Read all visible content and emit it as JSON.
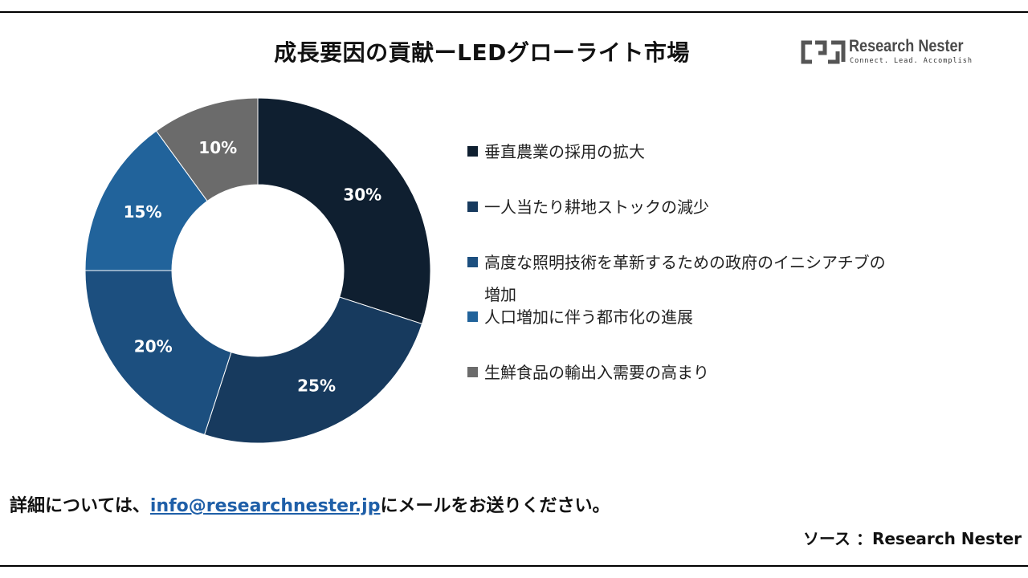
{
  "title": "成長要因の貢献ーLEDグローライト市場",
  "logo": {
    "name": "Research Nester",
    "tagline": "Connect. Lead. Accomplish",
    "icon": "research-nester-logo"
  },
  "chart_data": {
    "type": "pie",
    "donut": true,
    "start_angle_deg": 0,
    "direction": "clockwise",
    "categories": [
      "垂直農業の採用の拡大",
      "一人当たり耕地ストックの減少",
      "高度な照明技術を革新するための政府のイニシアチブの増加",
      "人口増加に伴う都市化の進展",
      "生鮮食品の輸出入需要の高まり"
    ],
    "values": [
      30,
      25,
      20,
      15,
      10
    ],
    "labels": [
      "30%",
      "25%",
      "20%",
      "15%",
      "10%"
    ],
    "colors": [
      "#0f1f30",
      "#173a5e",
      "#1c4f7f",
      "#21639b",
      "#6b6b6b"
    ],
    "legend_placement": "right"
  },
  "legend": [
    {
      "line1": "垂直農業の採用の拡大",
      "line2": ""
    },
    {
      "line1": "一人当たり耕地ストックの減少",
      "line2": ""
    },
    {
      "line1": "高度な照明技術を革新するための政府のイニシアチブの",
      "line2": "増加"
    },
    {
      "line1": "人口増加に伴う都市化の進展",
      "line2": ""
    },
    {
      "line1": "生鮮食品の輸出入需要の高まり",
      "line2": ""
    }
  ],
  "footer": {
    "prefix": "詳細については、",
    "email": "info@researchnester.jp",
    "suffix": "にメールをお送りください。"
  },
  "source": "ソース ：Research Nester"
}
